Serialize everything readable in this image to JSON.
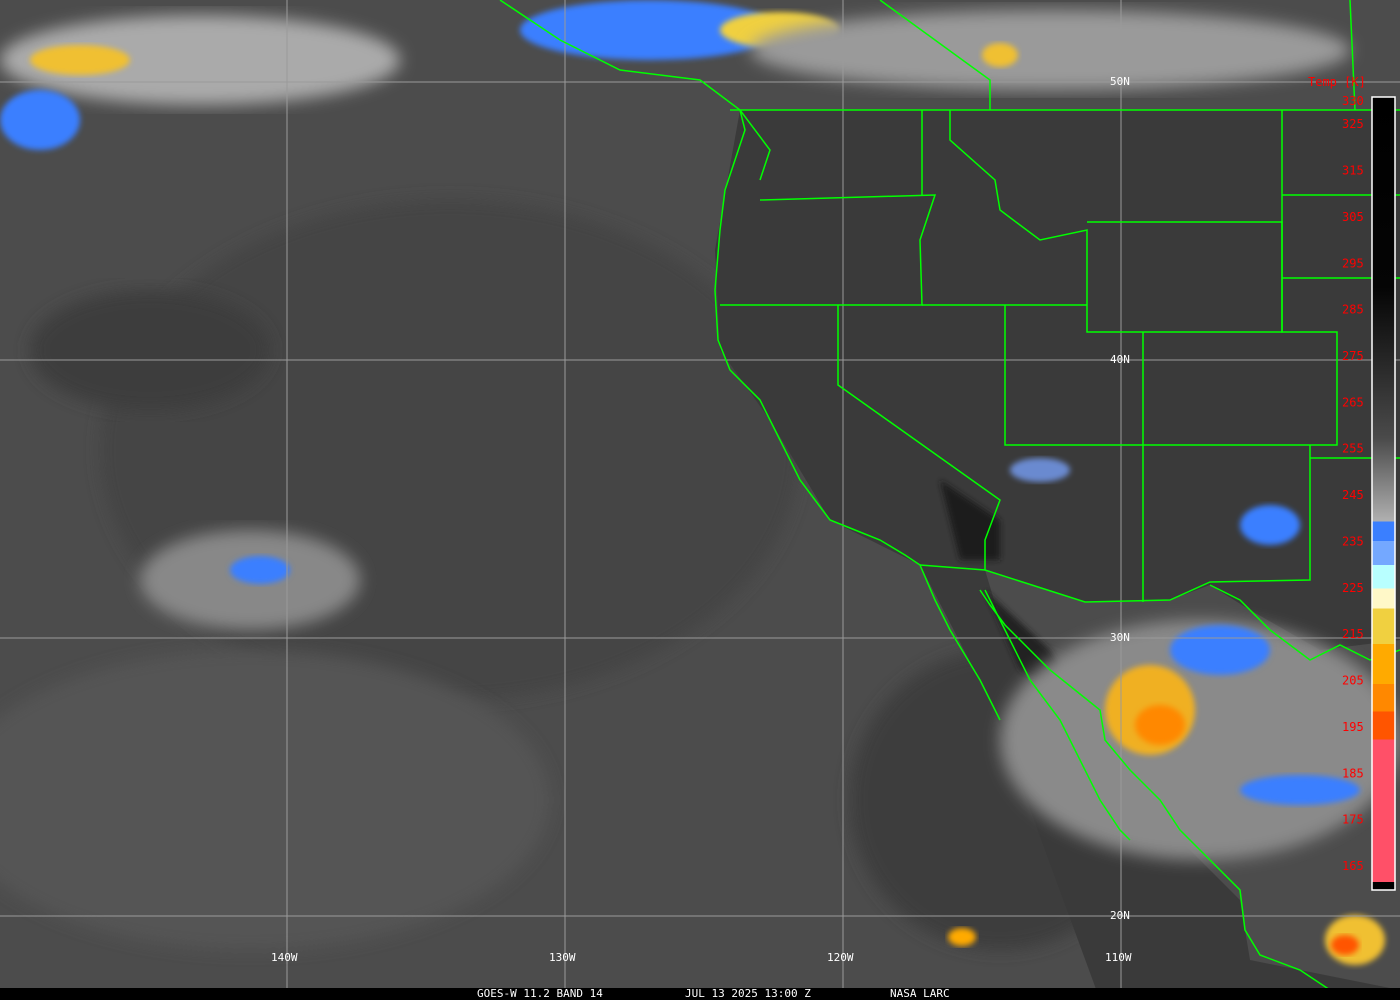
{
  "map": {
    "type": "satellite infrared imagery",
    "longitude_labels": [
      "140W",
      "130W",
      "120W",
      "110W"
    ],
    "latitude_labels": [
      "50N",
      "40N",
      "30N",
      "20N"
    ],
    "border_color": "#00ff00",
    "grid_color": "#9a9a9a"
  },
  "colorbar": {
    "title": "Temp [K]",
    "ticks": [
      "330",
      "325",
      "315",
      "305",
      "295",
      "285",
      "275",
      "265",
      "255",
      "245",
      "235",
      "225",
      "215",
      "205",
      "195",
      "185",
      "175",
      "165"
    ],
    "range": [
      165,
      330
    ],
    "label_color": "#ff0000"
  },
  "footer": {
    "satellite": "GOES-W 11.2 BAND 14",
    "datetime": "JUL 13 2025 13:00 Z",
    "credit": "NASA LARC"
  }
}
